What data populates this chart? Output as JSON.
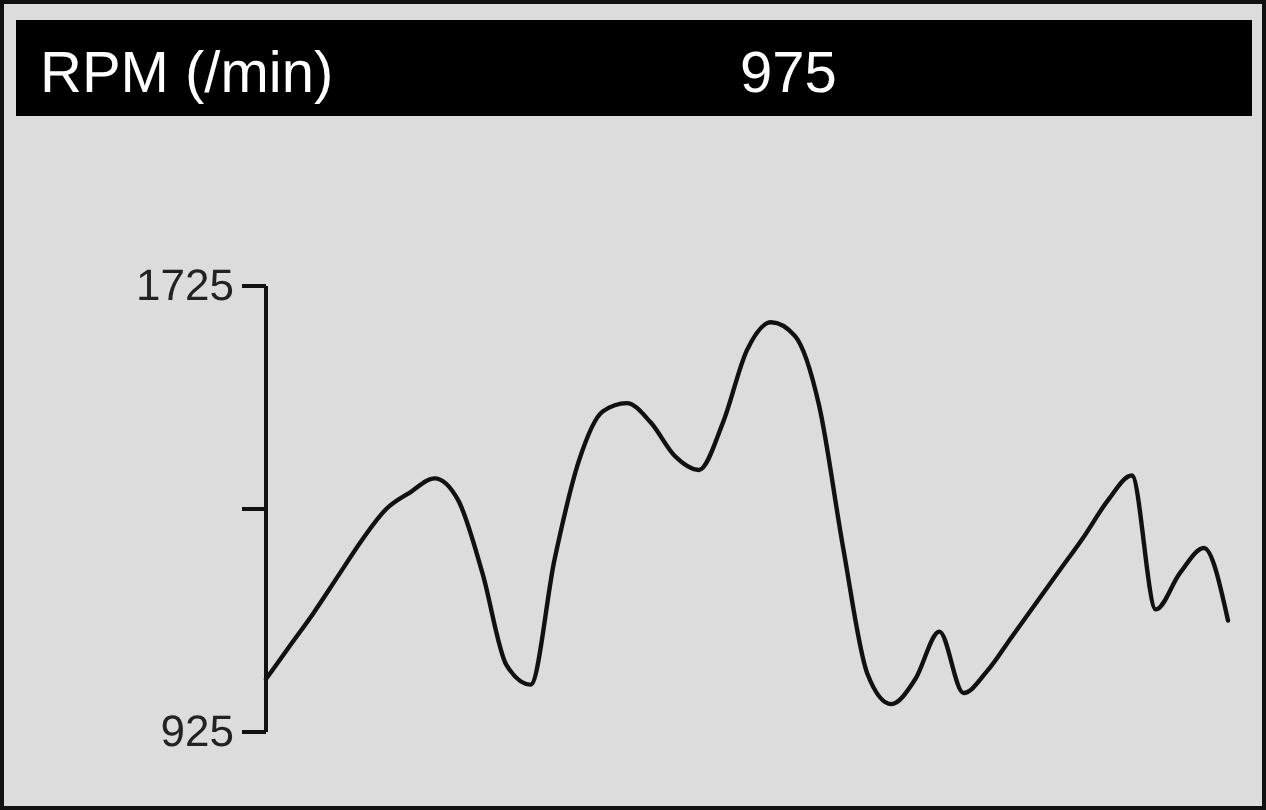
{
  "chart_data": {
    "type": "line",
    "title": "RPM (/min)",
    "subtitle": "975",
    "categories": [
      null,
      null,
      null,
      null,
      null,
      null,
      null,
      null,
      null,
      null,
      null,
      null,
      null,
      null,
      null,
      null,
      null,
      null,
      null,
      null,
      null,
      null,
      null,
      null,
      null,
      null,
      null,
      null,
      null,
      null,
      null,
      null,
      null,
      null,
      null,
      null,
      null,
      null,
      null,
      null,
      null
    ],
    "series": [
      {
        "color": "#111111",
        "values": [
          1020,
          1080,
          1140,
          1205,
          1270,
          1325,
          1355,
          1380,
          1340,
          1210,
          1045,
          1010,
          1235,
          1410,
          1500,
          1515,
          1480,
          1420,
          1395,
          1480,
          1610,
          1660,
          1635,
          1510,
          1255,
          1030,
          975,
          1020,
          1105,
          995,
          1035,
          1095,
          1155,
          1215,
          1275,
          1340,
          1385,
          1145,
          1210,
          1255,
          1125
        ]
      }
    ],
    "ylim": [
      925,
      1725
    ],
    "yticks": [
      925,
      {
        "value": 1325,
        "label": null
      },
      1725
    ],
    "tick_labels": "y",
    "grid": false,
    "marker": "none",
    "line_style": "solid"
  }
}
